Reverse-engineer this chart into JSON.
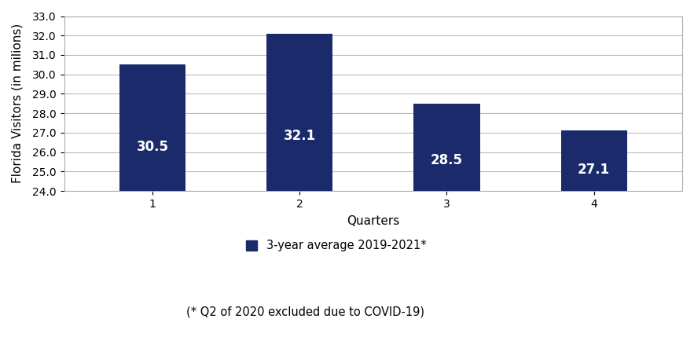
{
  "categories": [
    "1",
    "2",
    "3",
    "4"
  ],
  "values": [
    30.5,
    32.1,
    28.5,
    27.1
  ],
  "bar_color": "#1b2a6b",
  "xlabel": "Quarters",
  "ylabel": "Florida Visitors (in milions)",
  "ylim": [
    24.0,
    33.0
  ],
  "yticks": [
    24.0,
    25.0,
    26.0,
    27.0,
    28.0,
    29.0,
    30.0,
    31.0,
    32.0,
    33.0
  ],
  "label_text_color": "#ffffff",
  "label_fontsize": 12,
  "xlabel_fontsize": 11,
  "ylabel_fontsize": 11,
  "tick_fontsize": 10,
  "legend_label": "3-year average 2019-2021*",
  "legend_sublabel": "(* Q2 of 2020 excluded due to COVID-19)",
  "background_color": "#ffffff",
  "grid_color": "#bbbbbb",
  "bar_width": 0.45
}
